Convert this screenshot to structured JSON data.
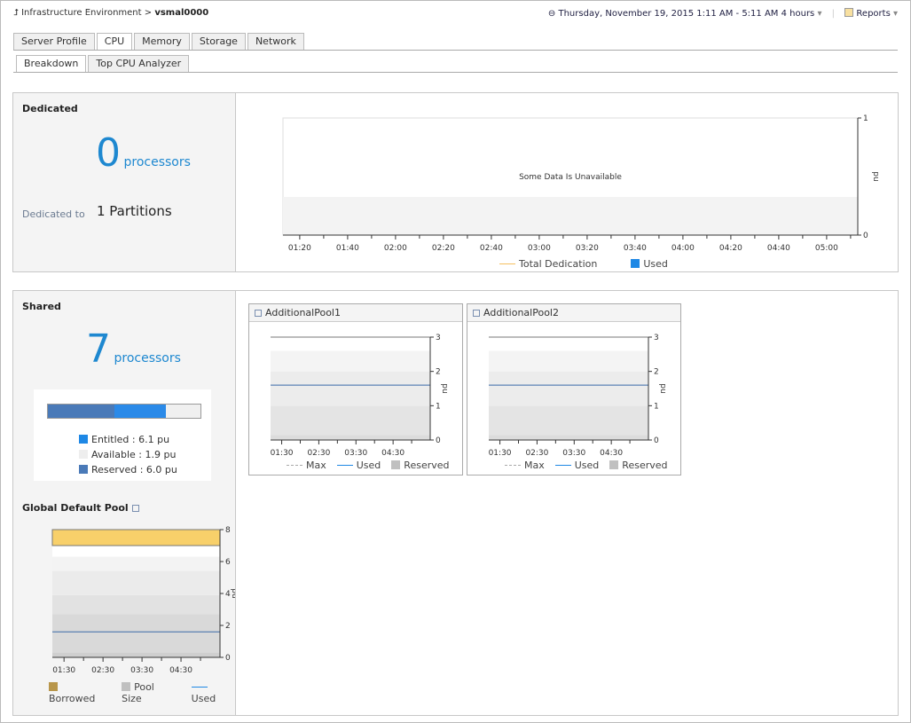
{
  "breadcrumb": {
    "parent": "Infrastructure Environment",
    "separator": ">",
    "current": "vsmal0000"
  },
  "timerange": {
    "label": "Thursday, November 19, 2015 1:11 AM - 5:11 AM 4 hours"
  },
  "reports": {
    "label": "Reports"
  },
  "tabs": [
    {
      "label": "Server Profile"
    },
    {
      "label": "CPU",
      "active": true
    },
    {
      "label": "Memory"
    },
    {
      "label": "Storage"
    },
    {
      "label": "Network"
    }
  ],
  "subtabs": [
    {
      "label": "Breakdown",
      "active": true
    },
    {
      "label": "Top CPU Analyzer"
    }
  ],
  "dedicated": {
    "title": "Dedicated",
    "count": "0",
    "unit": "processors",
    "dedicated_to_label": "Dedicated to",
    "partitions": "1 Partitions",
    "chart": {
      "message": "Some Data Is Unavailable",
      "ylabel": "pu",
      "yticks": [
        "0",
        "1"
      ],
      "xticks": [
        "01:20",
        "01:40",
        "02:00",
        "02:20",
        "02:40",
        "03:00",
        "03:20",
        "03:40",
        "04:00",
        "04:20",
        "04:40",
        "05:00"
      ],
      "legend": [
        {
          "label": "Total Dedication",
          "color": "#f5c060"
        },
        {
          "label": "Used",
          "color": "#1e88e5"
        }
      ]
    }
  },
  "shared": {
    "title": "Shared",
    "count": "7",
    "unit": "processors",
    "bar": {
      "reserved": 6.0,
      "entitled": 6.1,
      "available": 1.9
    },
    "legend": [
      {
        "label": "Entitled : 6.1 pu",
        "color": "#1e88e5"
      },
      {
        "label": "Available : 1.9 pu",
        "color": "#eeeeee"
      },
      {
        "label": "Reserved : 6.0 pu",
        "color": "#4a7ab8"
      }
    ]
  },
  "pools": [
    {
      "title": "AdditionalPool1",
      "ylabel": "pu",
      "ylim": [
        0,
        3
      ],
      "yticks": [
        "0",
        "1",
        "2",
        "3"
      ],
      "xticks": [
        "01:30",
        "02:30",
        "03:30",
        "04:30"
      ],
      "used": 1.6,
      "max": 3,
      "legend": [
        {
          "label": "Max"
        },
        {
          "label": "Used"
        },
        {
          "label": "Reserved"
        }
      ]
    },
    {
      "title": "AdditionalPool2",
      "ylabel": "pu",
      "ylim": [
        0,
        3
      ],
      "yticks": [
        "0",
        "1",
        "2",
        "3"
      ],
      "xticks": [
        "01:30",
        "02:30",
        "03:30",
        "04:30"
      ],
      "used": 1.6,
      "max": 3,
      "legend": [
        {
          "label": "Max"
        },
        {
          "label": "Used"
        },
        {
          "label": "Reserved"
        }
      ]
    }
  ],
  "global_pool": {
    "title": "Global Default Pool",
    "ylabel": "pu",
    "ylim": [
      0,
      8
    ],
    "yticks": [
      "0",
      "2",
      "4",
      "6",
      "8"
    ],
    "xticks": [
      "01:30",
      "02:30",
      "03:30",
      "04:30"
    ],
    "used": 1.6,
    "pool_size": 7,
    "borrowed": 1,
    "legend": [
      {
        "label": "Borrowed",
        "color": "#b8964a"
      },
      {
        "label": "Pool Size",
        "color": "#c0c0c0"
      },
      {
        "label": "Used",
        "color": "#1e88e5"
      }
    ]
  }
}
